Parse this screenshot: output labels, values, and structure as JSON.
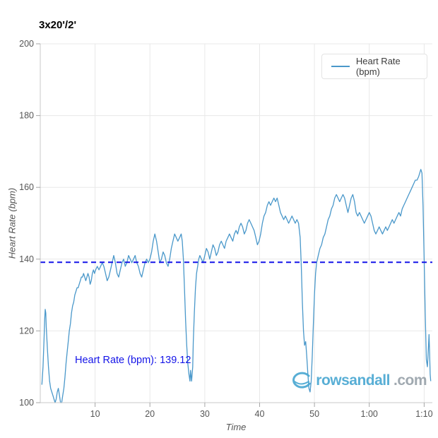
{
  "title": "3x20'/2'",
  "legend": {
    "label": "Heart Rate (bpm)"
  },
  "annotation": {
    "text": "Heart Rate (bpm): 139.12",
    "color": "#1414e8"
  },
  "watermark": {
    "name": "rowsandall",
    "tld": ".com"
  },
  "colors": {
    "line": "#4a98ca",
    "average": "#1414e8",
    "grid": "#e8e8e8",
    "axis": "#c9c9c9",
    "tick": "#a6a6a6",
    "tick_label": "#555555",
    "logo_blue": "#4aa8d2",
    "logo_gray": "#98a2aa"
  },
  "chart_data": {
    "type": "line",
    "title": "3x20'/2'",
    "xlabel": "Time",
    "ylabel": "Heart Rate (bpm)",
    "xlim": [
      0,
      71.5
    ],
    "ylim": [
      100,
      200
    ],
    "grid": true,
    "legend_position": "top-right",
    "x_ticks": [
      {
        "value": 10,
        "label": "10"
      },
      {
        "value": 20,
        "label": "20"
      },
      {
        "value": 30,
        "label": "30"
      },
      {
        "value": 40,
        "label": "40"
      },
      {
        "value": 50,
        "label": "50"
      },
      {
        "value": 60,
        "label": "1:00"
      },
      {
        "value": 70,
        "label": "1:10"
      }
    ],
    "y_ticks": [
      {
        "value": 100,
        "label": "100"
      },
      {
        "value": 120,
        "label": "120"
      },
      {
        "value": 140,
        "label": "140"
      },
      {
        "value": 160,
        "label": "160"
      },
      {
        "value": 180,
        "label": "180"
      },
      {
        "value": 200,
        "label": "200"
      }
    ],
    "average_line": {
      "value": 139.12,
      "color": "#1414e8",
      "style": "dashed"
    },
    "series": [
      {
        "name": "Heart Rate (bpm)",
        "color": "#4a98ca",
        "points": [
          [
            0.3,
            105
          ],
          [
            0.5,
            110
          ],
          [
            0.7,
            118
          ],
          [
            0.8,
            123
          ],
          [
            0.9,
            126
          ],
          [
            1.0,
            125
          ],
          [
            1.1,
            121
          ],
          [
            1.3,
            115
          ],
          [
            1.5,
            110
          ],
          [
            1.7,
            106
          ],
          [
            1.9,
            104
          ],
          [
            2.1,
            103
          ],
          [
            2.3,
            102
          ],
          [
            2.5,
            101
          ],
          [
            2.7,
            100
          ],
          [
            2.9,
            101
          ],
          [
            3.1,
            103
          ],
          [
            3.3,
            104
          ],
          [
            3.5,
            102
          ],
          [
            3.7,
            100
          ],
          [
            3.9,
            100
          ],
          [
            4.1,
            102
          ],
          [
            4.3,
            104
          ],
          [
            4.5,
            107
          ],
          [
            4.7,
            111
          ],
          [
            4.9,
            114
          ],
          [
            5.1,
            117
          ],
          [
            5.3,
            120
          ],
          [
            5.5,
            122
          ],
          [
            5.7,
            125
          ],
          [
            5.9,
            127
          ],
          [
            6.1,
            128
          ],
          [
            6.3,
            130
          ],
          [
            6.5,
            131
          ],
          [
            6.7,
            132
          ],
          [
            6.9,
            132
          ],
          [
            7.1,
            133
          ],
          [
            7.3,
            134
          ],
          [
            7.5,
            135
          ],
          [
            7.7,
            135
          ],
          [
            7.9,
            136
          ],
          [
            8.1,
            135
          ],
          [
            8.3,
            134
          ],
          [
            8.5,
            135
          ],
          [
            8.7,
            136
          ],
          [
            8.9,
            135
          ],
          [
            9.1,
            133
          ],
          [
            9.3,
            134
          ],
          [
            9.5,
            136
          ],
          [
            9.7,
            137
          ],
          [
            9.9,
            136
          ],
          [
            10.1,
            137
          ],
          [
            10.4,
            138
          ],
          [
            10.7,
            137
          ],
          [
            11.0,
            138
          ],
          [
            11.3,
            139
          ],
          [
            11.6,
            138
          ],
          [
            11.9,
            136
          ],
          [
            12.2,
            134
          ],
          [
            12.5,
            135
          ],
          [
            12.8,
            137
          ],
          [
            13.1,
            139
          ],
          [
            13.4,
            141
          ],
          [
            13.7,
            139
          ],
          [
            14.0,
            136
          ],
          [
            14.3,
            135
          ],
          [
            14.6,
            137
          ],
          [
            14.9,
            139
          ],
          [
            15.2,
            140
          ],
          [
            15.5,
            138
          ],
          [
            15.8,
            139
          ],
          [
            16.1,
            141
          ],
          [
            16.4,
            140
          ],
          [
            16.7,
            139
          ],
          [
            17.0,
            140
          ],
          [
            17.3,
            141
          ],
          [
            17.6,
            139
          ],
          [
            17.9,
            138
          ],
          [
            18.2,
            136
          ],
          [
            18.5,
            135
          ],
          [
            18.8,
            137
          ],
          [
            19.1,
            139
          ],
          [
            19.4,
            140
          ],
          [
            19.7,
            139
          ],
          [
            20.0,
            140
          ],
          [
            20.3,
            142
          ],
          [
            20.6,
            145
          ],
          [
            20.9,
            147
          ],
          [
            21.2,
            145
          ],
          [
            21.5,
            142
          ],
          [
            21.8,
            139
          ],
          [
            22.1,
            140
          ],
          [
            22.4,
            142
          ],
          [
            22.7,
            141
          ],
          [
            23.0,
            139
          ],
          [
            23.3,
            138
          ],
          [
            23.6,
            140
          ],
          [
            23.9,
            143
          ],
          [
            24.2,
            145
          ],
          [
            24.5,
            147
          ],
          [
            24.8,
            146
          ],
          [
            25.1,
            145
          ],
          [
            25.4,
            146
          ],
          [
            25.7,
            147
          ],
          [
            25.9,
            145
          ],
          [
            26.1,
            140
          ],
          [
            26.3,
            132
          ],
          [
            26.5,
            123
          ],
          [
            26.7,
            116
          ],
          [
            26.9,
            111
          ],
          [
            27.1,
            108
          ],
          [
            27.3,
            106
          ],
          [
            27.4,
            109
          ],
          [
            27.6,
            106
          ],
          [
            27.8,
            110
          ],
          [
            27.9,
            117
          ],
          [
            28.1,
            125
          ],
          [
            28.3,
            132
          ],
          [
            28.5,
            136
          ],
          [
            28.7,
            138
          ],
          [
            28.9,
            140
          ],
          [
            29.1,
            141
          ],
          [
            29.4,
            140
          ],
          [
            29.7,
            139
          ],
          [
            30.0,
            141
          ],
          [
            30.3,
            143
          ],
          [
            30.6,
            142
          ],
          [
            30.9,
            140
          ],
          [
            31.2,
            142
          ],
          [
            31.5,
            144
          ],
          [
            31.8,
            143
          ],
          [
            32.1,
            141
          ],
          [
            32.4,
            142
          ],
          [
            32.7,
            144
          ],
          [
            33.0,
            145
          ],
          [
            33.3,
            144
          ],
          [
            33.6,
            143
          ],
          [
            33.9,
            145
          ],
          [
            34.2,
            146
          ],
          [
            34.5,
            147
          ],
          [
            34.8,
            146
          ],
          [
            35.1,
            145
          ],
          [
            35.4,
            147
          ],
          [
            35.7,
            148
          ],
          [
            36.0,
            147
          ],
          [
            36.3,
            149
          ],
          [
            36.6,
            150
          ],
          [
            36.9,
            149
          ],
          [
            37.2,
            147
          ],
          [
            37.5,
            148
          ],
          [
            37.8,
            150
          ],
          [
            38.1,
            151
          ],
          [
            38.4,
            150
          ],
          [
            38.7,
            149
          ],
          [
            39.0,
            148
          ],
          [
            39.3,
            146
          ],
          [
            39.6,
            144
          ],
          [
            39.9,
            145
          ],
          [
            40.2,
            147
          ],
          [
            40.5,
            150
          ],
          [
            40.8,
            152
          ],
          [
            41.1,
            153
          ],
          [
            41.4,
            155
          ],
          [
            41.7,
            156
          ],
          [
            42.0,
            155
          ],
          [
            42.3,
            156
          ],
          [
            42.6,
            157
          ],
          [
            42.9,
            156
          ],
          [
            43.2,
            157
          ],
          [
            43.5,
            155
          ],
          [
            43.8,
            153
          ],
          [
            44.1,
            152
          ],
          [
            44.4,
            151
          ],
          [
            44.7,
            152
          ],
          [
            45.0,
            151
          ],
          [
            45.3,
            150
          ],
          [
            45.6,
            151
          ],
          [
            45.9,
            152
          ],
          [
            46.2,
            151
          ],
          [
            46.5,
            150
          ],
          [
            46.8,
            151
          ],
          [
            47.1,
            150
          ],
          [
            47.4,
            146
          ],
          [
            47.6,
            138
          ],
          [
            47.8,
            128
          ],
          [
            48.0,
            120
          ],
          [
            48.2,
            116
          ],
          [
            48.4,
            117
          ],
          [
            48.6,
            113
          ],
          [
            48.8,
            108
          ],
          [
            49.0,
            104
          ],
          [
            49.2,
            103
          ],
          [
            49.4,
            106
          ],
          [
            49.6,
            113
          ],
          [
            49.8,
            122
          ],
          [
            50.0,
            130
          ],
          [
            50.2,
            136
          ],
          [
            50.4,
            139
          ],
          [
            50.7,
            141
          ],
          [
            51.0,
            143
          ],
          [
            51.3,
            144
          ],
          [
            51.6,
            146
          ],
          [
            51.9,
            147
          ],
          [
            52.2,
            149
          ],
          [
            52.5,
            151
          ],
          [
            52.8,
            152
          ],
          [
            53.1,
            154
          ],
          [
            53.4,
            155
          ],
          [
            53.7,
            157
          ],
          [
            54.0,
            158
          ],
          [
            54.3,
            157
          ],
          [
            54.6,
            156
          ],
          [
            54.9,
            157
          ],
          [
            55.2,
            158
          ],
          [
            55.5,
            157
          ],
          [
            55.8,
            155
          ],
          [
            56.1,
            153
          ],
          [
            56.4,
            155
          ],
          [
            56.7,
            157
          ],
          [
            57.0,
            158
          ],
          [
            57.3,
            156
          ],
          [
            57.6,
            153
          ],
          [
            57.9,
            152
          ],
          [
            58.2,
            153
          ],
          [
            58.5,
            152
          ],
          [
            58.8,
            151
          ],
          [
            59.1,
            150
          ],
          [
            59.4,
            151
          ],
          [
            59.7,
            152
          ],
          [
            60.0,
            153
          ],
          [
            60.3,
            152
          ],
          [
            60.6,
            150
          ],
          [
            60.9,
            148
          ],
          [
            61.2,
            147
          ],
          [
            61.5,
            148
          ],
          [
            61.8,
            149
          ],
          [
            62.1,
            148
          ],
          [
            62.4,
            147
          ],
          [
            62.7,
            148
          ],
          [
            63.0,
            149
          ],
          [
            63.3,
            148
          ],
          [
            63.6,
            149
          ],
          [
            63.9,
            150
          ],
          [
            64.2,
            151
          ],
          [
            64.5,
            150
          ],
          [
            64.8,
            151
          ],
          [
            65.1,
            152
          ],
          [
            65.4,
            153
          ],
          [
            65.7,
            152
          ],
          [
            66.0,
            154
          ],
          [
            66.3,
            155
          ],
          [
            66.6,
            156
          ],
          [
            66.9,
            157
          ],
          [
            67.2,
            158
          ],
          [
            67.5,
            159
          ],
          [
            67.8,
            160
          ],
          [
            68.1,
            161
          ],
          [
            68.4,
            162
          ],
          [
            68.7,
            162
          ],
          [
            69.0,
            163
          ],
          [
            69.2,
            164
          ],
          [
            69.4,
            165
          ],
          [
            69.6,
            164
          ],
          [
            69.8,
            155
          ],
          [
            70.0,
            140
          ],
          [
            70.2,
            125
          ],
          [
            70.4,
            112
          ],
          [
            70.6,
            110
          ],
          [
            70.8,
            116
          ],
          [
            70.9,
            119
          ],
          [
            71.0,
            114
          ],
          [
            71.1,
            108
          ],
          [
            71.2,
            106
          ]
        ]
      }
    ]
  }
}
